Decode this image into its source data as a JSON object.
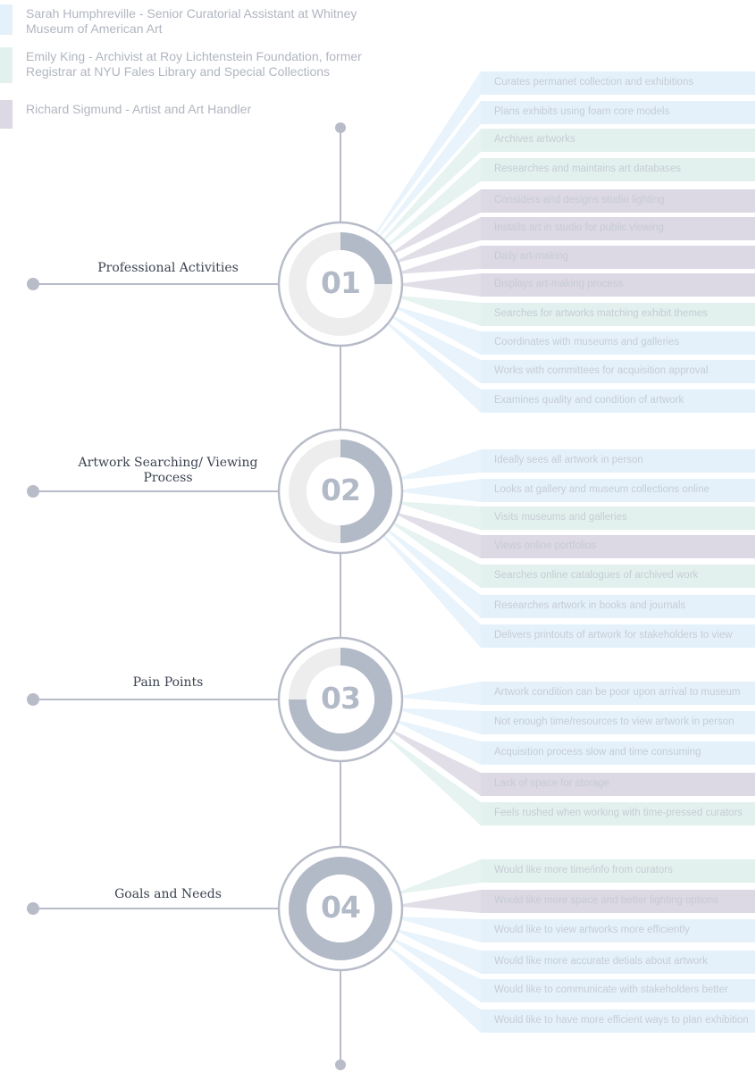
{
  "colors": {
    "blue": "#e4f1fb",
    "green": "#e2f1ee",
    "purple": "#dcd8e4",
    "line": "#b7bcc8",
    "ring_fill": "#b3bac7",
    "ring_track": "#ededed"
  },
  "legend": [
    {
      "text": "Sarah Humphreville - Senior Curatorial Assistant at Whitney Museum of American Art",
      "color": "blue"
    },
    {
      "text": "Emily King - Archivist at Roy Lichtenstein Foundation, former Registrar at NYU Fales Library and Special Collections",
      "color": "green"
    },
    {
      "text": "Richard Sigmund - Artist and Art Handler",
      "color": "purple"
    }
  ],
  "sections": [
    {
      "number": "01",
      "title": "Professional Activities",
      "progress": 0.25,
      "items": [
        {
          "text": "Curates permanet collection and exhibitions",
          "color": "blue"
        },
        {
          "text": "Plans exhibits using foam core models",
          "color": "blue"
        },
        {
          "text": "Archives artworks",
          "color": "green"
        },
        {
          "text": "Researches and maintains art databases",
          "color": "green"
        },
        {
          "text": "Considers and designs studio lighting",
          "color": "purple"
        },
        {
          "text": "Installs art in studio for public viewing",
          "color": "purple"
        },
        {
          "text": "Daily art-making",
          "color": "purple"
        },
        {
          "text": "Displays art-making process",
          "color": "purple"
        },
        {
          "text": "Searches for artworks matching exhibit themes",
          "color": "green"
        },
        {
          "text": "Coordinates with museums and galleries",
          "color": "blue"
        },
        {
          "text": "Works with committees for acquisition approval",
          "color": "blue"
        },
        {
          "text": "Examines quality and condition of artwork",
          "color": "blue"
        }
      ]
    },
    {
      "number": "02",
      "title": "Artwork Searching/ Viewing Process",
      "progress": 0.5,
      "items": [
        {
          "text": "Ideally sees all artwork in person",
          "color": "blue"
        },
        {
          "text": "Looks at gallery and museum collections online",
          "color": "blue"
        },
        {
          "text": "Visits museums and galleries",
          "color": "green"
        },
        {
          "text": "Views online portfolios",
          "color": "purple"
        },
        {
          "text": "Searches online catalogues of archived work",
          "color": "green"
        },
        {
          "text": "Researches artwork in books and journals",
          "color": "blue"
        },
        {
          "text": "Delivers printouts of artwork for stakeholders to view",
          "color": "blue"
        }
      ]
    },
    {
      "number": "03",
      "title": "Pain Points",
      "progress": 0.75,
      "items": [
        {
          "text": "Artwork condition can be poor upon arrival to museum",
          "color": "blue"
        },
        {
          "text": "Not enough time/resources to view artwork in person",
          "color": "blue"
        },
        {
          "text": "Acquisition process slow and time consuming",
          "color": "blue"
        },
        {
          "text": "Lack of space for storage",
          "color": "purple"
        },
        {
          "text": "Feels rushed when working with time-pressed curators",
          "color": "green"
        }
      ]
    },
    {
      "number": "04",
      "title": "Goals and Needs",
      "progress": 1.0,
      "items": [
        {
          "text": "Would like more time/info from curators",
          "color": "green"
        },
        {
          "text": "Would like more space and better lighting options",
          "color": "purple"
        },
        {
          "text": "Would like to view artworks more efficiently",
          "color": "blue"
        },
        {
          "text": "Would like more accurate detials about artwork",
          "color": "blue"
        },
        {
          "text": "Would like to communicate with stakeholders better",
          "color": "blue"
        },
        {
          "text": "Would like to have more efficient ways to plan exhibition",
          "color": "blue"
        }
      ]
    }
  ]
}
